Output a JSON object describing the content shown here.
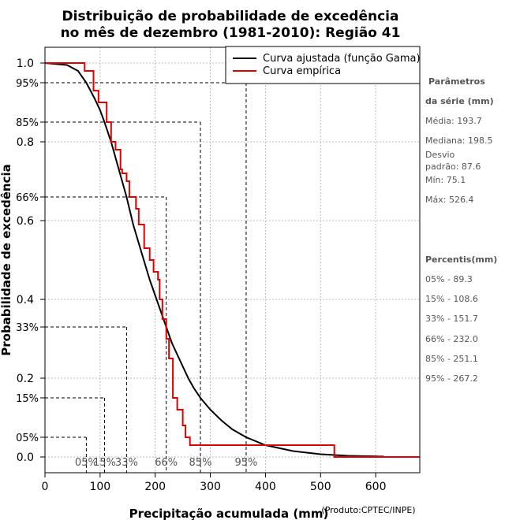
{
  "chart_data": {
    "type": "line",
    "title": [
      "Distribuição de probabilidade de excedência",
      "no mês de dezembro (1981-2010): Região 41"
    ],
    "xlabel": "Precipitação acumulada (mm)",
    "ylabel": "Probabilidade de excedência",
    "source": "(Produto:CPTEC/INPE)",
    "xlim": [
      0,
      680
    ],
    "ylim": [
      -0.04,
      1.04
    ],
    "x_ticks": [
      0,
      100,
      200,
      300,
      400,
      500,
      600
    ],
    "y_ticks": [
      {
        "value": 0.0,
        "label": "0.0"
      },
      {
        "value": 0.2,
        "label": "0.2"
      },
      {
        "value": 0.4,
        "label": "0.4"
      },
      {
        "value": 0.6,
        "label": "0.6"
      },
      {
        "value": 0.8,
        "label": "0.8"
      },
      {
        "value": 1.0,
        "label": "1.0"
      }
    ],
    "pct_ticks": [
      {
        "value": 0.05,
        "label": "05%",
        "x": 75
      },
      {
        "value": 0.15,
        "label": "15%",
        "x": 108
      },
      {
        "value": 0.33,
        "label": "33%",
        "x": 148
      },
      {
        "value": 0.66,
        "label": "66%",
        "x": 220
      },
      {
        "value": 0.85,
        "label": "85%",
        "x": 282
      },
      {
        "value": 0.95,
        "label": "95%",
        "x": 365
      }
    ],
    "x_pct_labels": [
      {
        "label": "05%",
        "x": 75
      },
      {
        "label": "15%",
        "x": 108
      },
      {
        "label": "33%",
        "x": 148
      },
      {
        "label": "66%",
        "x": 220
      },
      {
        "label": "85%",
        "x": 282
      },
      {
        "label": "95%",
        "x": 365
      }
    ],
    "legend_position": "top-right",
    "series": [
      {
        "name": "Curva ajustada (função Gama)",
        "color": "#000000",
        "x": [
          0,
          40,
          60,
          75,
          90,
          100,
          108,
          120,
          130,
          140,
          148,
          160,
          175,
          190,
          200,
          210,
          220,
          230,
          240,
          250,
          260,
          270,
          282,
          300,
          320,
          340,
          365,
          400,
          450,
          500,
          550,
          615
        ],
        "y": [
          1.0,
          0.995,
          0.98,
          0.95,
          0.91,
          0.88,
          0.85,
          0.8,
          0.75,
          0.7,
          0.66,
          0.59,
          0.52,
          0.45,
          0.41,
          0.37,
          0.33,
          0.29,
          0.26,
          0.23,
          0.2,
          0.175,
          0.15,
          0.12,
          0.093,
          0.07,
          0.05,
          0.03,
          0.015,
          0.007,
          0.003,
          0.001
        ]
      },
      {
        "name": "Curva empírica",
        "color": "#dd0000",
        "x": [
          0,
          72,
          72,
          88,
          88,
          97,
          97,
          112,
          112,
          120,
          120,
          128,
          128,
          137,
          137,
          140,
          140,
          148,
          148,
          153,
          153,
          158,
          158,
          165,
          165,
          170,
          170,
          180,
          180,
          190,
          190,
          197,
          197,
          205,
          205,
          208,
          208,
          213,
          213,
          220,
          220,
          225,
          225,
          232,
          232,
          240,
          240,
          250,
          250,
          255,
          255,
          263,
          263,
          270,
          270,
          525,
          525,
          530,
          530,
          680
        ],
        "y": [
          1.0,
          1.0,
          0.98,
          0.98,
          0.93,
          0.93,
          0.9,
          0.9,
          0.85,
          0.85,
          0.8,
          0.8,
          0.78,
          0.78,
          0.73,
          0.73,
          0.72,
          0.72,
          0.7,
          0.7,
          0.66,
          0.66,
          0.66,
          0.66,
          0.63,
          0.63,
          0.59,
          0.59,
          0.53,
          0.53,
          0.5,
          0.5,
          0.47,
          0.47,
          0.45,
          0.45,
          0.4,
          0.4,
          0.35,
          0.35,
          0.3,
          0.3,
          0.25,
          0.25,
          0.15,
          0.15,
          0.12,
          0.12,
          0.08,
          0.08,
          0.05,
          0.05,
          0.03,
          0.03,
          0.03,
          0.03,
          0.0,
          0.0,
          0.0,
          0.0
        ]
      }
    ]
  },
  "side_panel": {
    "params_heading": [
      "Parâmetros",
      "da série (mm)"
    ],
    "params": [
      "Média: 193.7",
      "Mediana: 198.5",
      "Desvio",
      "padrão: 87.6",
      "Mín: 75.1",
      "Máx: 526.4"
    ],
    "percentis_heading": "Percentis(mm)",
    "percentis": [
      "05% - 89.3",
      "15% - 108.6",
      "33% - 151.7",
      "66% - 232.0",
      "85% - 251.1",
      "95% - 267.2"
    ]
  }
}
